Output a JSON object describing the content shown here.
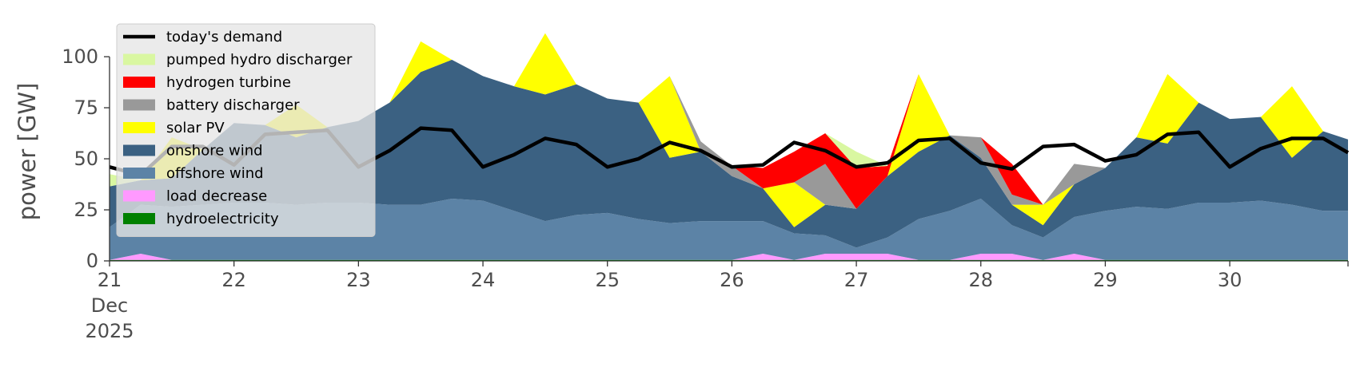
{
  "chart_data": {
    "type": "area",
    "stacked": true,
    "ylabel": "power [GW]",
    "xlabel": "",
    "ylim": [
      0,
      118
    ],
    "yticks": [
      0,
      25,
      50,
      75,
      100
    ],
    "xlim": [
      21,
      30.95
    ],
    "xticks": [
      {
        "value": 21,
        "label": [
          "21",
          "Dec",
          "2025"
        ]
      },
      {
        "value": 22,
        "label": [
          "22"
        ]
      },
      {
        "value": 23,
        "label": [
          "23"
        ]
      },
      {
        "value": 24,
        "label": [
          "24"
        ]
      },
      {
        "value": 25,
        "label": [
          "25"
        ]
      },
      {
        "value": 26,
        "label": [
          "26"
        ]
      },
      {
        "value": 27,
        "label": [
          "27"
        ]
      },
      {
        "value": 28,
        "label": [
          "28"
        ]
      },
      {
        "value": 29,
        "label": [
          "29"
        ]
      },
      {
        "value": 30,
        "label": [
          "30"
        ]
      }
    ],
    "grid": false,
    "legend_position": "top-left",
    "x": [
      21.0,
      21.25,
      21.5,
      21.75,
      22.0,
      22.25,
      22.5,
      22.75,
      23.0,
      23.25,
      23.5,
      23.75,
      24.0,
      24.25,
      24.5,
      24.75,
      25.0,
      25.25,
      25.5,
      25.75,
      26.0,
      26.25,
      26.5,
      26.75,
      27.0,
      27.25,
      27.5,
      27.75,
      28.0,
      28.25,
      28.5,
      28.75,
      29.0,
      29.25,
      29.5,
      29.75,
      30.0,
      30.25,
      30.5,
      30.75,
      30.95
    ],
    "stack_series": [
      {
        "name": "hydroelectricity",
        "color": "#008000",
        "values": [
          0.5,
          0.5,
          0.5,
          0.5,
          0.5,
          0.5,
          0.5,
          0.5,
          0.5,
          0.5,
          0.5,
          0.5,
          0.5,
          0.5,
          0.5,
          0.5,
          0.5,
          0.5,
          0.5,
          0.5,
          0.5,
          0.5,
          0.5,
          0.5,
          0.5,
          0.5,
          0.5,
          0.5,
          0.5,
          0.5,
          0.5,
          0.5,
          0.5,
          0.5,
          0.5,
          0.5,
          0.5,
          0.5,
          0.5,
          0.5,
          0.5
        ]
      },
      {
        "name": "load decrease",
        "color": "#ff99ff",
        "values": [
          0,
          3,
          0,
          0,
          0,
          0,
          0,
          0,
          0,
          0,
          0,
          0,
          0,
          0,
          0,
          0,
          0,
          0,
          0,
          0,
          0,
          3,
          0,
          3,
          3,
          3,
          0,
          0,
          3,
          3,
          0,
          3,
          0,
          0,
          0,
          0,
          0,
          0,
          0,
          0,
          0
        ]
      },
      {
        "name": "offshore wind",
        "color": "#5c83a6",
        "values": [
          16,
          24,
          26,
          27,
          28,
          28,
          27,
          28,
          28,
          27,
          27,
          30,
          29,
          24,
          19,
          22,
          23,
          20,
          18,
          19,
          19,
          16,
          13,
          9,
          3,
          8,
          20,
          24,
          27,
          14,
          11,
          18,
          24,
          26,
          25,
          28,
          28,
          29,
          27,
          24,
          24
        ]
      },
      {
        "name": "onshore wind",
        "color": "#3b6182",
        "values": [
          20,
          12,
          14,
          27,
          39,
          38,
          33,
          37,
          40,
          50,
          65,
          68,
          61,
          61,
          62,
          64,
          56,
          57,
          32,
          34,
          22,
          16,
          3,
          15,
          19,
          30,
          33,
          37,
          20,
          10,
          6,
          16,
          21,
          34,
          32,
          49,
          41,
          41,
          23,
          39,
          35
        ]
      },
      {
        "name": "solar PV",
        "color": "#ffff00",
        "values": [
          0,
          0,
          20,
          0,
          0,
          0,
          16,
          0,
          0,
          0,
          15,
          0,
          0,
          0,
          30,
          0,
          0,
          0,
          40,
          0,
          0,
          0,
          22,
          0,
          0,
          0,
          38,
          0,
          0,
          0,
          10,
          0,
          0,
          0,
          34,
          0,
          0,
          0,
          35,
          0,
          0
        ]
      },
      {
        "name": "battery discharger",
        "color": "#999999",
        "values": [
          0,
          0,
          0,
          0,
          0,
          0,
          0,
          0,
          0,
          0,
          0,
          0,
          0,
          0,
          0,
          0,
          0,
          0,
          0,
          5,
          5,
          0,
          0,
          20,
          0,
          0,
          0,
          0,
          10,
          5,
          0,
          10,
          0,
          0,
          0,
          0,
          0,
          0,
          0,
          0,
          0
        ]
      },
      {
        "name": "hydrogen turbine",
        "color": "#ff0000",
        "values": [
          0,
          0,
          0,
          0,
          0,
          0,
          0,
          0,
          0,
          0,
          0,
          0,
          0,
          0,
          0,
          0,
          0,
          0,
          0,
          0,
          0,
          10,
          15,
          15,
          20,
          5,
          0,
          0,
          0,
          15,
          0,
          0,
          0,
          0,
          0,
          0,
          0,
          0,
          0,
          0,
          0
        ]
      },
      {
        "name": "pumped hydro discharger",
        "color": "#d9f7a1",
        "values": [
          6,
          0,
          0,
          0,
          0,
          0,
          0,
          0,
          0,
          0,
          0,
          0,
          0,
          0,
          0,
          0,
          0,
          0,
          0,
          0,
          0,
          0,
          0,
          0,
          8,
          0,
          0,
          0,
          0,
          0,
          0,
          0,
          0,
          0,
          0,
          0,
          0,
          0,
          0,
          0,
          0
        ]
      }
    ],
    "line_series": [
      {
        "name": "today's demand",
        "color": "#000000",
        "values": [
          46,
          42,
          56,
          56,
          47,
          62,
          63,
          64,
          46,
          54,
          65,
          64,
          46,
          52,
          60,
          57,
          46,
          50,
          58,
          54,
          46,
          47,
          58,
          54,
          46,
          48,
          59,
          60,
          48,
          45,
          56,
          57,
          49,
          52,
          62,
          63,
          46,
          55,
          60,
          60,
          53
        ]
      }
    ],
    "legend_items": [
      {
        "label": "today's demand",
        "kind": "line",
        "color": "#000000"
      },
      {
        "label": "pumped hydro discharger",
        "kind": "patch",
        "color": "#d9f7a1"
      },
      {
        "label": "hydrogen turbine",
        "kind": "patch",
        "color": "#ff0000"
      },
      {
        "label": "battery discharger",
        "kind": "patch",
        "color": "#999999"
      },
      {
        "label": "solar PV",
        "kind": "patch",
        "color": "#ffff00"
      },
      {
        "label": "onshore wind",
        "kind": "patch",
        "color": "#3b6182"
      },
      {
        "label": "offshore wind",
        "kind": "patch",
        "color": "#5c83a6"
      },
      {
        "label": "load decrease",
        "kind": "patch",
        "color": "#ff99ff"
      },
      {
        "label": "hydroelectricity",
        "kind": "patch",
        "color": "#008000"
      }
    ]
  }
}
